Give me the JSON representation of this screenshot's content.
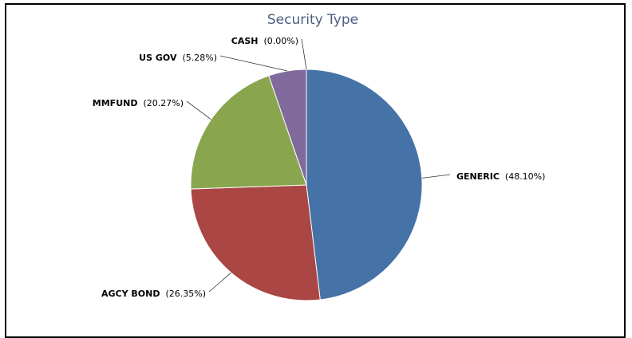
{
  "chart_data": {
    "type": "pie",
    "title": "Security Type",
    "slices": [
      {
        "name": "GENERIC",
        "value": 48.1,
        "label": "(48.10%)",
        "color": "#4572a7"
      },
      {
        "name": "AGCY BOND",
        "value": 26.35,
        "label": "(26.35%)",
        "color": "#aa4643"
      },
      {
        "name": "MMFUND",
        "value": 20.27,
        "label": "(20.27%)",
        "color": "#89a54e"
      },
      {
        "name": "US GOV",
        "value": 5.28,
        "label": "(5.28%)",
        "color": "#80699b"
      },
      {
        "name": "CASH",
        "value": 0.0,
        "label": "(0.00%)",
        "color": "#3d96ae"
      }
    ]
  }
}
